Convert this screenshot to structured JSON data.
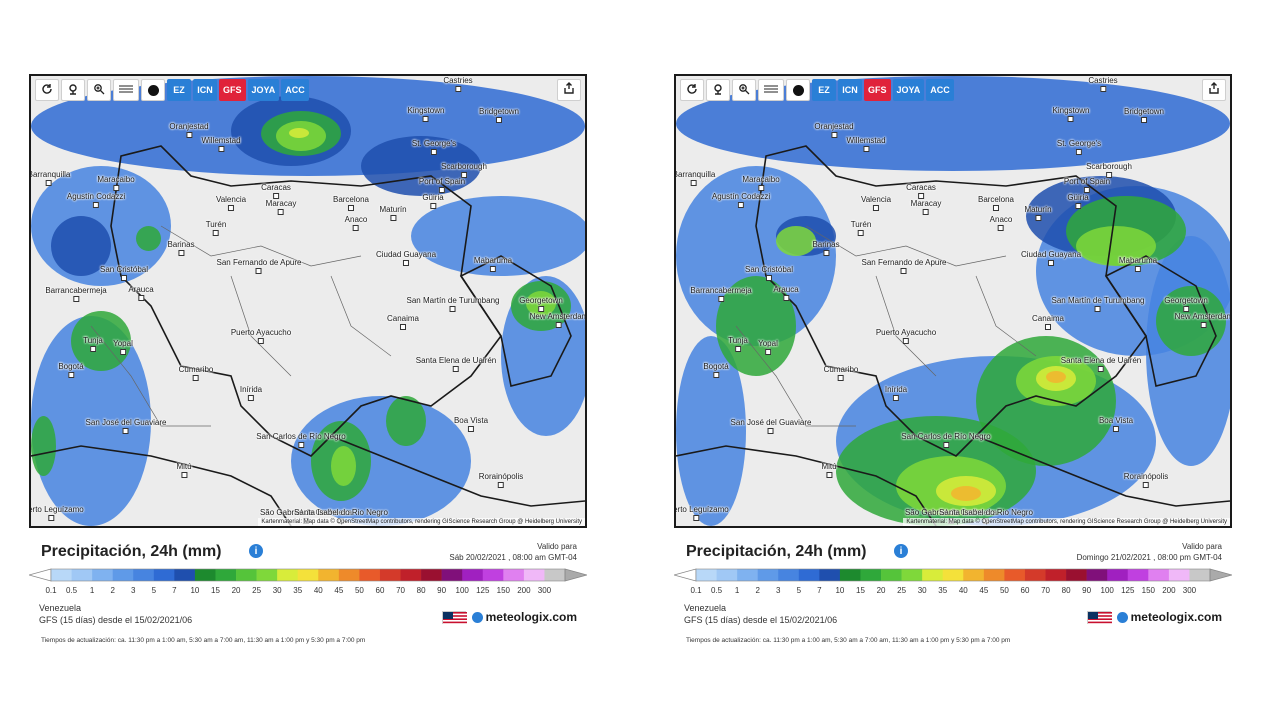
{
  "colors": {
    "model_btn": "#2a7fd6",
    "model_active": "#e0223a",
    "accent_blue": "#2a7fd6"
  },
  "toolbar": {
    "icons": [
      "reload-icon",
      "location-icon",
      "zoom-icon",
      "scale-icon",
      "dark-mode-icon"
    ],
    "models": [
      {
        "label": "EZ",
        "active": false
      },
      {
        "label": "ICN",
        "active": false
      },
      {
        "label": "GFS",
        "active": true
      },
      {
        "label": "JOYA",
        "active": false
      },
      {
        "label": "ACC",
        "active": false
      }
    ],
    "share_icon": "share-icon"
  },
  "cities": [
    "Castries",
    "Kingstown",
    "Bridgetown",
    "Oranjestad",
    "Willemstad",
    "St. George's",
    "Scarborough",
    "Port of Spain",
    "Barranquilla",
    "Maracaibo",
    "Caracas",
    "Valencia",
    "Maracay",
    "Barcelona",
    "Güiria",
    "Maturín",
    "Agustín Codazzi",
    "Anaco",
    "Turén",
    "Barinas",
    "Ciudad Guayana",
    "Mabaruma",
    "San Cristóbal",
    "San Fernando de Apure",
    "Barrancabermeja",
    "Arauca",
    "San Martín de Turumbang",
    "Georgetown",
    "Canaima",
    "New Amsterdam",
    "Tunja",
    "Yopal",
    "Puerto Ayacucho",
    "Bogotá",
    "Santa Elena de Uairén",
    "Cumaribo",
    "Inírida",
    "San José del Guaviare",
    "Boa Vista",
    "San Carlos de Río Negro",
    "Mitú",
    "Rorainópolis",
    "São Gabriel da Cachoeira",
    "Santa Isabel do Rio Negro",
    "Puerto Leguízamo"
  ],
  "attribution": "Kartenmaterial: Map data © OpenStreetMap contributors, rendering GIScience Research Group @ Heidelberg University",
  "title": "Precipitación, 24h (mm)",
  "info_icon": "i",
  "valid_label": "Valido para",
  "legend": {
    "ticks": [
      "0.1",
      "0.5",
      "1",
      "2",
      "3",
      "5",
      "7",
      "10",
      "15",
      "20",
      "25",
      "30",
      "35",
      "40",
      "45",
      "50",
      "60",
      "70",
      "80",
      "90",
      "100",
      "125",
      "150",
      "200",
      "300"
    ],
    "colors": [
      "#b8d8f8",
      "#a0c8f5",
      "#7fb2f0",
      "#5f9ae8",
      "#4784e0",
      "#2f6bd4",
      "#1f4fae",
      "#1d8a2e",
      "#2fa83a",
      "#55c43a",
      "#7fd83a",
      "#d8ec3a",
      "#f4e13a",
      "#f2b42f",
      "#ee8a2a",
      "#e85a2a",
      "#d43a2a",
      "#c0202a",
      "#9a1030",
      "#80107a",
      "#a020c0",
      "#c040e0",
      "#e080f0",
      "#f0b8f8",
      "#c8c8c8"
    ]
  },
  "region": "Venezuela",
  "source": "GFS (15 días) desde el 15/02/2021/06",
  "brand": "meteologix.com",
  "update_times": "Tiempos de actualización: ca. 11:30 pm a 1:00 am, 5:30 am a 7:00 am, 11:30 am a 1:00 pm y 5:30 pm a 7:00 pm",
  "panels": [
    {
      "valid_time": "Sáb 20/02/2021 , 08:00 am GMT-04"
    },
    {
      "valid_time": "Domingo 21/02/2021 , 08:00 pm GMT-04"
    }
  ]
}
